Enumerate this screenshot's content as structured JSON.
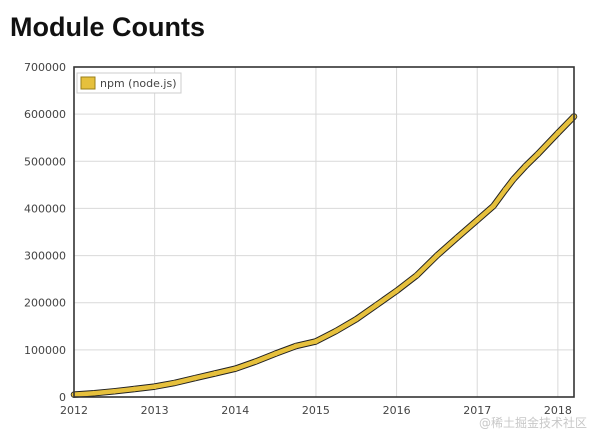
{
  "page": {
    "title": "Module Counts"
  },
  "watermark": "@稀土掘金技术社区",
  "chart_data": {
    "type": "line",
    "title": "Module Counts",
    "xlabel": "",
    "ylabel": "",
    "xlim": [
      2012.0,
      2018.2
    ],
    "ylim": [
      0,
      700000
    ],
    "x_ticks": [
      "2012",
      "2013",
      "2014",
      "2015",
      "2016",
      "2017",
      "2018"
    ],
    "y_ticks": [
      "0",
      "100000",
      "200000",
      "300000",
      "400000",
      "500000",
      "600000",
      "700000"
    ],
    "grid": true,
    "legend": {
      "position": "top-left",
      "entries": [
        "npm (node.js)"
      ]
    },
    "series": [
      {
        "name": "npm (node.js)",
        "color": "#e6c03c",
        "x": [
          2012.0,
          2012.25,
          2012.5,
          2012.75,
          2013.0,
          2013.25,
          2013.5,
          2013.75,
          2014.0,
          2014.25,
          2014.5,
          2014.75,
          2015.0,
          2015.25,
          2015.5,
          2015.75,
          2016.0,
          2016.25,
          2016.5,
          2016.75,
          2017.0,
          2017.2,
          2017.35,
          2017.45,
          2017.6,
          2017.75,
          2018.0,
          2018.2
        ],
        "values": [
          5000,
          8000,
          12000,
          17000,
          22000,
          30000,
          40000,
          50000,
          60000,
          75000,
          92000,
          108000,
          118000,
          140000,
          165000,
          195000,
          225000,
          258000,
          300000,
          338000,
          375000,
          405000,
          440000,
          462000,
          490000,
          515000,
          560000,
          595000
        ]
      }
    ]
  }
}
